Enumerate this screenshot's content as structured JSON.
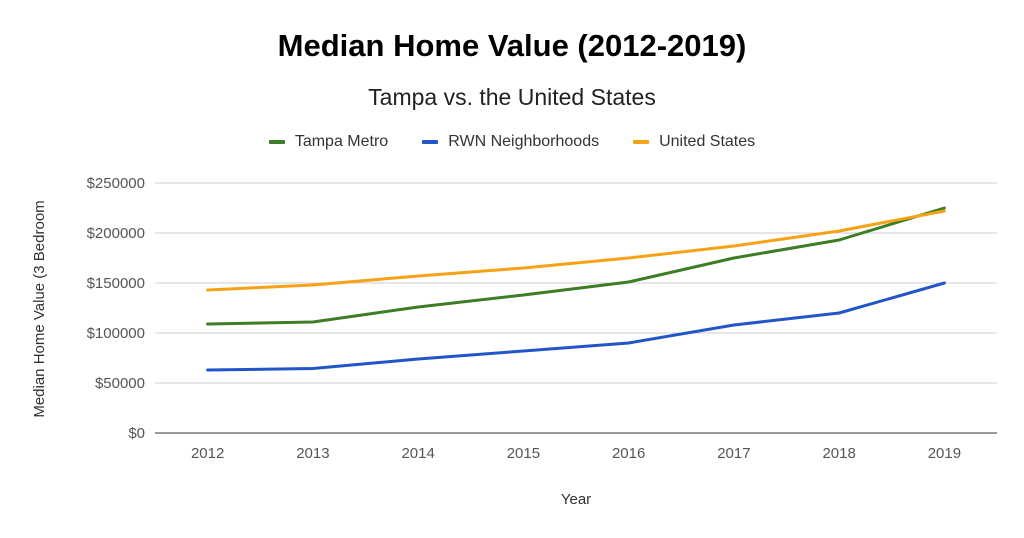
{
  "chart_data": {
    "type": "line",
    "title": "Median Home Value (2012-2019)",
    "subtitle": "Tampa vs. the United States",
    "xlabel": "Year",
    "ylabel": "Median Home Value (3 Bedroom",
    "categories": [
      "2012",
      "2013",
      "2014",
      "2015",
      "2016",
      "2017",
      "2018",
      "2019"
    ],
    "ylim": [
      0,
      250000
    ],
    "yticks": [
      0,
      50000,
      100000,
      150000,
      200000,
      250000
    ],
    "ytick_labels": [
      "$0",
      "$50000",
      "$100000",
      "$150000",
      "$200000",
      "$250000"
    ],
    "grid": true,
    "legend_position": "top",
    "series": [
      {
        "name": "Tampa Metro",
        "color": "#3d7d25",
        "values": [
          109000,
          111000,
          126000,
          138000,
          151000,
          175000,
          193000,
          225000
        ]
      },
      {
        "name": "RWN Neighborhoods",
        "color": "#2155c8",
        "values": [
          63000,
          64500,
          74000,
          82000,
          90000,
          108000,
          120000,
          150000
        ]
      },
      {
        "name": "United States",
        "color": "#f7a114",
        "values": [
          143000,
          148000,
          157000,
          165000,
          175000,
          187000,
          202000,
          222000
        ]
      }
    ]
  }
}
